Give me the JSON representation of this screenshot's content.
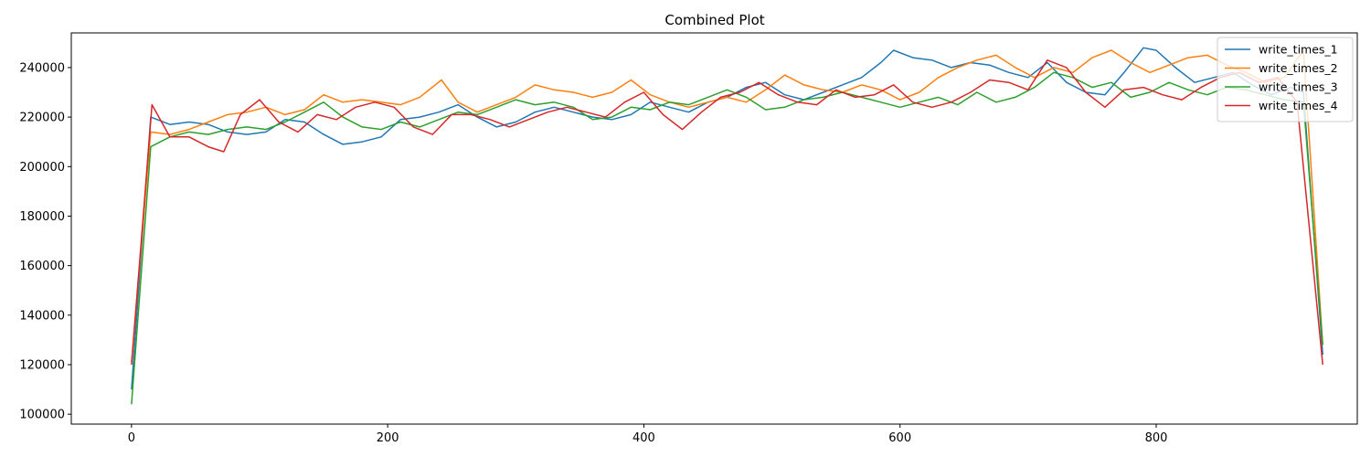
{
  "chart_data": {
    "type": "line",
    "title": "Combined Plot",
    "xlabel": "",
    "ylabel": "",
    "xlim": [
      -47,
      957
    ],
    "ylim": [
      96000,
      254000
    ],
    "x_ticks": [
      0,
      200,
      400,
      600,
      800
    ],
    "y_ticks": [
      100000,
      120000,
      140000,
      160000,
      180000,
      200000,
      220000,
      240000
    ],
    "grid": false,
    "legend_position": "top-right",
    "series": [
      {
        "name": "write_times_1",
        "color": "#1f77b4",
        "x": [
          0,
          15,
          30,
          45,
          60,
          75,
          90,
          105,
          120,
          135,
          150,
          165,
          180,
          195,
          210,
          225,
          240,
          255,
          270,
          285,
          300,
          315,
          330,
          345,
          360,
          375,
          390,
          405,
          420,
          435,
          450,
          465,
          480,
          495,
          510,
          525,
          540,
          555,
          570,
          585,
          595,
          610,
          625,
          640,
          655,
          670,
          685,
          700,
          715,
          730,
          745,
          760,
          775,
          790,
          800,
          815,
          830,
          845,
          860,
          875,
          890,
          905,
          915,
          930
        ],
        "y": [
          110000,
          220000,
          217000,
          218000,
          217000,
          214000,
          213000,
          214000,
          219000,
          218000,
          213000,
          209000,
          210000,
          212000,
          219000,
          220000,
          222000,
          225000,
          220000,
          216000,
          218000,
          222000,
          224000,
          222000,
          220000,
          219000,
          221000,
          226000,
          224000,
          222000,
          226000,
          228000,
          232000,
          234000,
          229000,
          227000,
          230000,
          233000,
          236000,
          242000,
          247000,
          244000,
          243000,
          240000,
          242000,
          241000,
          238000,
          236000,
          242000,
          234000,
          230000,
          229000,
          238000,
          248000,
          247000,
          240000,
          234000,
          236000,
          238000,
          233000,
          229000,
          232000,
          230000,
          124000
        ]
      },
      {
        "name": "write_times_2",
        "color": "#ff7f0e",
        "x": [
          0,
          15,
          30,
          45,
          60,
          75,
          90,
          105,
          120,
          135,
          150,
          165,
          180,
          195,
          210,
          225,
          242,
          255,
          270,
          285,
          300,
          315,
          330,
          345,
          360,
          375,
          390,
          405,
          420,
          435,
          450,
          465,
          480,
          495,
          510,
          525,
          540,
          555,
          570,
          585,
          600,
          615,
          630,
          645,
          660,
          675,
          690,
          705,
          720,
          735,
          750,
          765,
          780,
          795,
          810,
          825,
          840,
          855,
          870,
          885,
          900,
          915,
          930
        ],
        "y": [
          121000,
          214000,
          213000,
          215000,
          218000,
          221000,
          222000,
          224000,
          221000,
          223000,
          229000,
          226000,
          227000,
          226000,
          225000,
          228000,
          235000,
          226000,
          222000,
          225000,
          228000,
          233000,
          231000,
          230000,
          228000,
          230000,
          235000,
          229000,
          226000,
          224000,
          226000,
          228000,
          226000,
          231000,
          237000,
          233000,
          231000,
          230000,
          233000,
          231000,
          227000,
          230000,
          236000,
          240000,
          243000,
          245000,
          240000,
          236000,
          240000,
          238000,
          244000,
          247000,
          242000,
          238000,
          241000,
          244000,
          245000,
          241000,
          238000,
          234000,
          236000,
          247000,
          128000
        ]
      },
      {
        "name": "write_times_3",
        "color": "#2ca02c",
        "x": [
          0,
          15,
          30,
          45,
          60,
          75,
          90,
          105,
          120,
          135,
          150,
          165,
          180,
          195,
          210,
          225,
          240,
          255,
          270,
          285,
          300,
          315,
          330,
          345,
          360,
          375,
          390,
          405,
          420,
          435,
          450,
          465,
          480,
          495,
          510,
          525,
          540,
          555,
          570,
          585,
          600,
          615,
          630,
          645,
          660,
          675,
          690,
          705,
          720,
          735,
          750,
          765,
          780,
          795,
          810,
          825,
          840,
          855,
          870,
          885,
          900,
          915,
          930
        ],
        "y": [
          104000,
          208000,
          212000,
          214000,
          213000,
          215000,
          216000,
          215000,
          218000,
          222000,
          226000,
          220000,
          216000,
          215000,
          218000,
          216000,
          219000,
          222000,
          221000,
          224000,
          227000,
          225000,
          226000,
          224000,
          219000,
          220000,
          224000,
          223000,
          226000,
          225000,
          228000,
          231000,
          228000,
          223000,
          224000,
          227000,
          228000,
          230000,
          228000,
          226000,
          224000,
          226000,
          228000,
          225000,
          230000,
          226000,
          228000,
          232000,
          238000,
          236000,
          232000,
          234000,
          228000,
          230000,
          234000,
          231000,
          229000,
          232000,
          231000,
          229000,
          227000,
          226000,
          128000
        ]
      },
      {
        "name": "write_times_4",
        "color": "#d62728",
        "x": [
          0,
          16,
          30,
          45,
          60,
          72,
          85,
          100,
          115,
          130,
          145,
          160,
          175,
          190,
          205,
          220,
          235,
          250,
          265,
          280,
          295,
          310,
          325,
          340,
          355,
          370,
          385,
          400,
          415,
          430,
          445,
          460,
          475,
          490,
          505,
          520,
          535,
          550,
          565,
          580,
          595,
          610,
          625,
          640,
          655,
          670,
          685,
          700,
          715,
          730,
          745,
          760,
          775,
          790,
          805,
          820,
          835,
          850,
          865,
          880,
          895,
          910,
          930
        ],
        "y": [
          120000,
          225000,
          212000,
          212000,
          208000,
          206000,
          221000,
          227000,
          218000,
          214000,
          221000,
          219000,
          224000,
          226000,
          224000,
          216000,
          213000,
          221000,
          221000,
          219000,
          216000,
          219000,
          222000,
          224000,
          222000,
          220000,
          226000,
          230000,
          221000,
          215000,
          222000,
          228000,
          230000,
          234000,
          229000,
          226000,
          225000,
          231000,
          228000,
          229000,
          233000,
          226000,
          224000,
          226000,
          230000,
          235000,
          234000,
          231000,
          243000,
          240000,
          230000,
          224000,
          231000,
          232000,
          229000,
          227000,
          232000,
          236000,
          238000,
          234000,
          236000,
          226000,
          120000
        ]
      }
    ]
  }
}
